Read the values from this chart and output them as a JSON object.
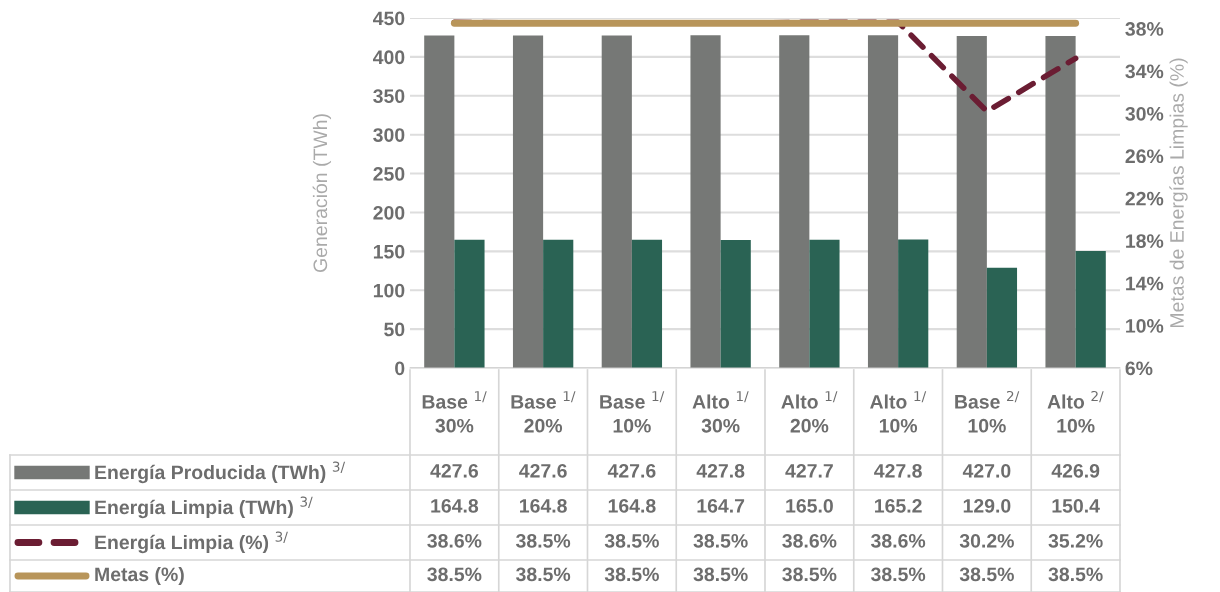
{
  "chart_data": {
    "type": "bar",
    "ylabel": "Generación (TWh)",
    "y2label": "Metas de Energías Limpias (%)",
    "categories": [
      "Base $^{1/}$\n30%",
      "Base $^{1/}$\n20%",
      "Base $^{1/}$\n10%",
      "Alto $^{1/}$\n30%",
      "Alto $^{1/}$\n20%",
      "Alto $^{1/}$\n10%",
      "Base $^{2/}$\n10%",
      "Alto $^{2/}$\n10%"
    ],
    "series": [
      {
        "name": "Energía Producida (TWh) $^{3/}$",
        "color": "#767876",
        "values": [
          427.6,
          427.6,
          427.6,
          427.8,
          427.7,
          427.8,
          427.0,
          426.9
        ],
        "value_labels": [
          "427.6",
          "427.6",
          "427.6",
          "427.8",
          "427.7",
          "427.8",
          "427.0",
          "426.9"
        ]
      },
      {
        "name": "Energía Limpia (TWh) $^{3/}$",
        "color": "#2a6354",
        "values": [
          164.8,
          164.8,
          164.8,
          164.7,
          165.0,
          165.2,
          129.0,
          150.4
        ],
        "value_labels": [
          "164.8",
          "164.8",
          "164.8",
          "164.7",
          "165.0",
          "165.2",
          "129.0",
          "150.4"
        ]
      },
      {
        "name": "Energía Limpia (%) $^{3/}$",
        "type": "line",
        "axis": "y2",
        "line_style": "dashed",
        "color": "#6b1d33",
        "values": [
          38.6,
          38.5,
          38.5,
          38.5,
          38.6,
          38.6,
          30.2,
          35.2
        ],
        "value_labels": [
          "38.6%",
          "38.5%",
          "38.5%",
          "38.5%",
          "38.6%",
          "38.6%",
          "30.2%",
          "35.2%"
        ]
      },
      {
        "name": "Metas (%)",
        "type": "line",
        "axis": "y2",
        "line_style": "solid",
        "color": "#b8955a",
        "values": [
          38.5,
          38.5,
          38.5,
          38.5,
          38.5,
          38.5,
          38.5,
          38.5
        ],
        "value_labels": [
          "38.5%",
          "38.5%",
          "38.5%",
          "38.5%",
          "38.5%",
          "38.5%",
          "38.5%",
          "38.5%"
        ]
      }
    ],
    "ylim": [
      0,
      450
    ],
    "yticks": [
      0,
      50,
      100,
      150,
      200,
      250,
      300,
      350,
      400,
      450
    ],
    "y2lim": [
      6,
      39
    ],
    "y2ticks": [
      {
        "value": 6,
        "label": "6%"
      },
      {
        "value": 10,
        "label": "10%"
      },
      {
        "value": 14,
        "label": "14%"
      },
      {
        "value": 18,
        "label": "18%"
      },
      {
        "value": 22,
        "label": "22%"
      },
      {
        "value": 26,
        "label": "26%"
      },
      {
        "value": 30,
        "label": "30%"
      },
      {
        "value": 34,
        "label": "34%"
      },
      {
        "value": 38,
        "label": "38%"
      }
    ],
    "grid": "y",
    "legend": "bottom",
    "marker": "none"
  }
}
